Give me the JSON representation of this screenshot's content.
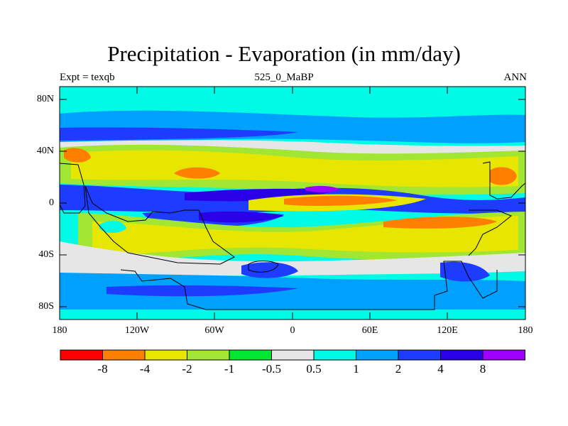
{
  "title": "Precipitation - Evaporation (in mm/day)",
  "subtitle_left": "Expt = texqb",
  "subtitle_center": "525_0_MaBP",
  "subtitle_right": "ANN",
  "y_tick_labels": [
    "80N",
    "40N",
    "0",
    "40S",
    "80S"
  ],
  "x_tick_labels": [
    "180",
    "120W",
    "60W",
    "0",
    "60E",
    "120E",
    "180"
  ],
  "colorbar": {
    "colors": [
      "#ff0000",
      "#ff7f00",
      "#e6e600",
      "#a0e632",
      "#00e632",
      "#e6e6e6",
      "#00fae6",
      "#00a0ff",
      "#1e3cff",
      "#2a00e6",
      "#9e00ff"
    ],
    "labels": [
      "-8",
      "-4",
      "-2",
      "-1",
      "-0.5",
      "0.5",
      "1",
      "2",
      "4",
      "8"
    ]
  },
  "map": {
    "background_color": "#00fae6",
    "levels": {
      "strong_dry": "#ff7f00",
      "dry": "#e6e600",
      "moderate_dry": "#a0e632",
      "light_dry": "#00e632",
      "neutral": "#e6e6e6",
      "light_wet": "#00fae6",
      "wet": "#00a0ff",
      "wetter": "#1e3cff",
      "very_wet": "#2a00e6",
      "extreme_wet": "#9e00ff"
    }
  }
}
